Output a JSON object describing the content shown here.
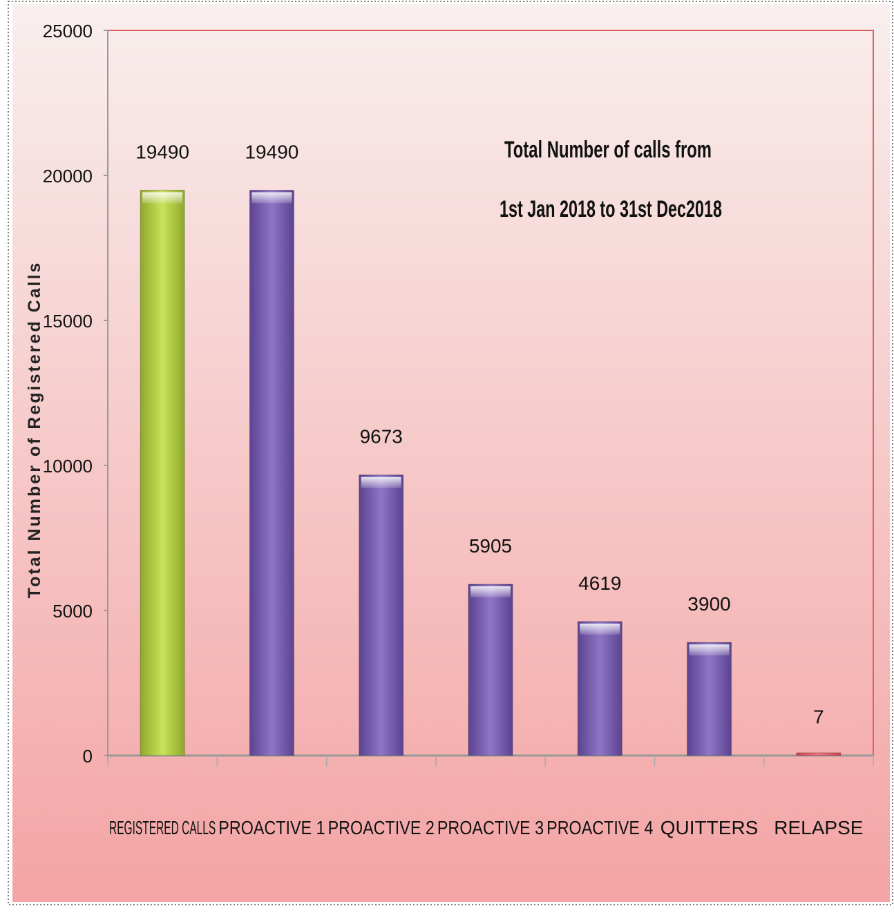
{
  "chart_data": {
    "type": "bar",
    "title_lines": [
      "Total Number of calls from",
      "1st Jan 2018 to 31st Dec2018"
    ],
    "ylabel": "Total Number of Registered Calls",
    "xlabel": "",
    "categories": [
      "REGISTERED  CALLS",
      "PROACTIVE 1",
      "PROACTIVE 2",
      "PROACTIVE 3",
      "PROACTIVE 4",
      "QUITTERS",
      "RELAPSE"
    ],
    "values": [
      19490,
      19490,
      9673,
      5905,
      4619,
      3900,
      7
    ],
    "data_labels": [
      "19490",
      "19490",
      "9673",
      "5905",
      "4619",
      "3900",
      "7"
    ],
    "bar_colors": [
      "#b5d13c",
      "#7b60b0",
      "#7b60b0",
      "#7b60b0",
      "#7b60b0",
      "#7b60b0",
      "#e05a6a"
    ],
    "label_colors": [
      "#111111",
      "#111111",
      "#111111",
      "#111111",
      "#111111",
      "#111111",
      "#111111"
    ],
    "ylim": [
      0,
      25000
    ],
    "yticks": [
      0,
      5000,
      10000,
      15000,
      20000,
      25000
    ],
    "ytick_labels": [
      "0",
      "5000",
      "10000",
      "15000",
      "20000",
      "25000"
    ],
    "grid": false,
    "legend": "none",
    "colors": {
      "plot_border": "#e06060",
      "background_top": "#f7ecec",
      "background_bottom": "#f4a7a7",
      "axis": "#999999"
    }
  }
}
